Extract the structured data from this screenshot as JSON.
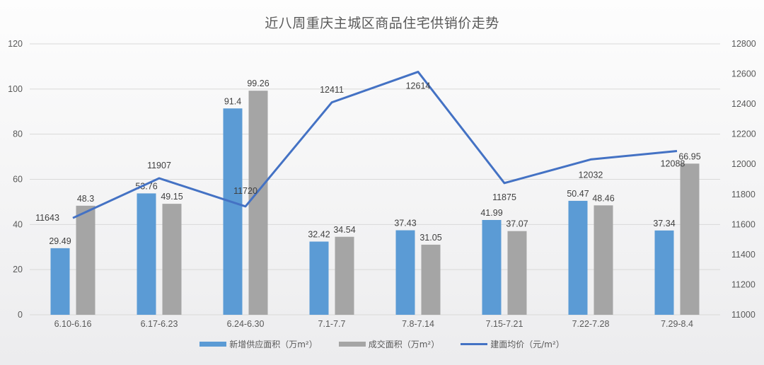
{
  "title": "近八周重庆主城区商品住宅供销价走势",
  "colors": {
    "supply": "#5b9bd5",
    "sales": "#a5a5a5",
    "price": "#4472c4",
    "grid": "#d9d9d9"
  },
  "legend": [
    {
      "label": "新增供应面积（万m²）",
      "type": "bar",
      "color": "#5b9bd5"
    },
    {
      "label": "成交面积（万m²）",
      "type": "bar",
      "color": "#a5a5a5"
    },
    {
      "label": "建面均价（元/m²）",
      "type": "line",
      "color": "#4472c4"
    }
  ],
  "chart_data": {
    "type": "bar",
    "title": "近八周重庆主城区商品住宅供销价走势",
    "categories": [
      "6.10-6.16",
      "6.17-6.23",
      "6.24-6.30",
      "7.1-7.7",
      "7.8-7.14",
      "7.15-7.21",
      "7.22-7.28",
      "7.29-8.4"
    ],
    "series": [
      {
        "name": "新增供应面积（万m²）",
        "type": "bar",
        "axis": "left",
        "values": [
          29.49,
          53.76,
          91.4,
          32.42,
          37.43,
          41.99,
          50.47,
          37.34
        ]
      },
      {
        "name": "成交面积（万m²）",
        "type": "bar",
        "axis": "left",
        "values": [
          48.3,
          49.15,
          99.26,
          34.54,
          31.05,
          37.07,
          48.46,
          66.95
        ]
      },
      {
        "name": "建面均价（元/m²）",
        "type": "line",
        "axis": "right",
        "values": [
          11643,
          11907,
          11720,
          12411,
          12614,
          11875,
          12032,
          12088
        ]
      }
    ],
    "ylim_left": [
      0,
      120
    ],
    "yticks_left": [
      0,
      20,
      40,
      60,
      80,
      100,
      120
    ],
    "ylim_right": [
      11000,
      12800
    ],
    "yticks_right": [
      11000,
      11200,
      11400,
      11600,
      11800,
      12000,
      12200,
      12400,
      12600,
      12800
    ],
    "grid": true,
    "legend_position": "bottom",
    "xlabel": "",
    "ylabel": ""
  }
}
